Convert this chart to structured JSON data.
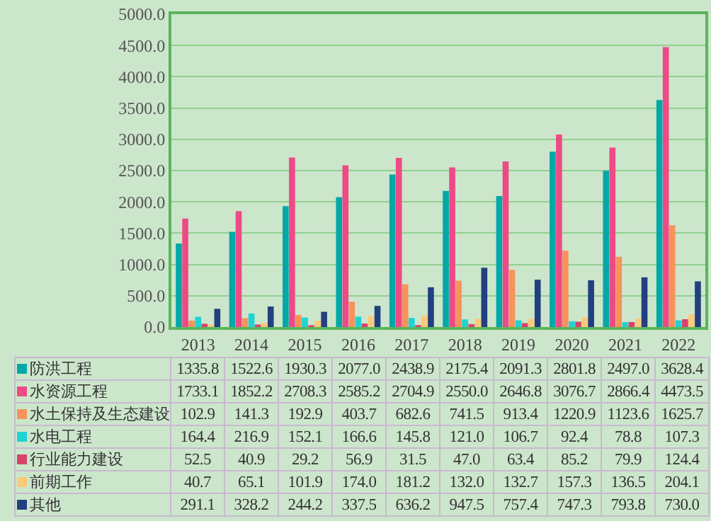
{
  "chart_data": {
    "type": "bar",
    "categories": [
      "2013",
      "2014",
      "2015",
      "2016",
      "2017",
      "2018",
      "2019",
      "2020",
      "2021",
      "2022"
    ],
    "ylim": [
      0,
      5000
    ],
    "yticks": [
      {
        "value": 0,
        "label": "0.0"
      },
      {
        "value": 500,
        "label": "500.0"
      },
      {
        "value": 1000,
        "label": "1000.0"
      },
      {
        "value": 1500,
        "label": "1500.0"
      },
      {
        "value": 2000,
        "label": "2000.0"
      },
      {
        "value": 2500,
        "label": "2500.0"
      },
      {
        "value": 3000,
        "label": "3000.0"
      },
      {
        "value": 3500,
        "label": "3500.0"
      },
      {
        "value": 4000,
        "label": "4000.0"
      },
      {
        "value": 4500,
        "label": "4500.0"
      },
      {
        "value": 5000,
        "label": "5000.0"
      }
    ],
    "grid": "y",
    "legend": "bottom",
    "series": [
      {
        "name": "防洪工程",
        "color": "#00a8a8",
        "values": [
          1335.8,
          1522.6,
          1930.3,
          2077.0,
          2438.9,
          2175.4,
          2091.3,
          2801.8,
          2497.0,
          3628.4
        ],
        "value_labels": [
          "1335.8",
          "1522.6",
          "1930.3",
          "2077.0",
          "2438.9",
          "2175.4",
          "2091.3",
          "2801.8",
          "2497.0",
          "3628.4"
        ]
      },
      {
        "name": "水资源工程",
        "color": "#ee4a85",
        "values": [
          1733.1,
          1852.2,
          2708.3,
          2585.2,
          2704.9,
          2550.0,
          2646.8,
          3076.7,
          2866.4,
          4473.5
        ],
        "value_labels": [
          "1733.1",
          "1852.2",
          "2708.3",
          "2585.2",
          "2704.9",
          "2550.0",
          "2646.8",
          "3076.7",
          "2866.4",
          "4473.5"
        ]
      },
      {
        "name": "水土保持及生态建设",
        "color": "#f7925c",
        "values": [
          102.9,
          141.3,
          192.9,
          403.7,
          682.6,
          741.5,
          913.4,
          1220.9,
          1123.6,
          1625.7
        ],
        "value_labels": [
          "102.9",
          "141.3",
          "192.9",
          "403.7",
          "682.6",
          "741.5",
          "913.4",
          "1220.9",
          "1123.6",
          "1625.7"
        ]
      },
      {
        "name": "水电工程",
        "color": "#1ed3d3",
        "values": [
          164.4,
          216.9,
          152.1,
          166.6,
          145.8,
          121.0,
          106.7,
          92.4,
          78.8,
          107.3
        ],
        "value_labels": [
          "164.4",
          "216.9",
          "152.1",
          "166.6",
          "145.8",
          "121.0",
          "106.7",
          "92.4",
          "78.8",
          "107.3"
        ]
      },
      {
        "name": "行业能力建设",
        "color": "#d9426b",
        "values": [
          52.5,
          40.9,
          29.2,
          56.9,
          31.5,
          47.0,
          63.4,
          85.2,
          79.9,
          124.4
        ],
        "value_labels": [
          "52.5",
          "40.9",
          "29.2",
          "56.9",
          "31.5",
          "47.0",
          "63.4",
          "85.2",
          "79.9",
          "124.4"
        ]
      },
      {
        "name": "前期工作",
        "color": "#fbc97a",
        "values": [
          40.7,
          65.1,
          101.9,
          174.0,
          181.2,
          132.0,
          132.7,
          157.3,
          136.5,
          204.1
        ],
        "value_labels": [
          "40.7",
          "65.1",
          "101.9",
          "174.0",
          "181.2",
          "132.0",
          "132.7",
          "157.3",
          "136.5",
          "204.1"
        ]
      },
      {
        "name": "其他",
        "color": "#223f7f",
        "values": [
          291.1,
          328.2,
          244.2,
          337.5,
          636.2,
          947.5,
          757.4,
          747.3,
          793.8,
          730.0
        ],
        "value_labels": [
          "291.1",
          "328.2",
          "244.2",
          "337.5",
          "636.2",
          "947.5",
          "757.4",
          "747.3",
          "793.8",
          "730.0"
        ]
      }
    ]
  }
}
